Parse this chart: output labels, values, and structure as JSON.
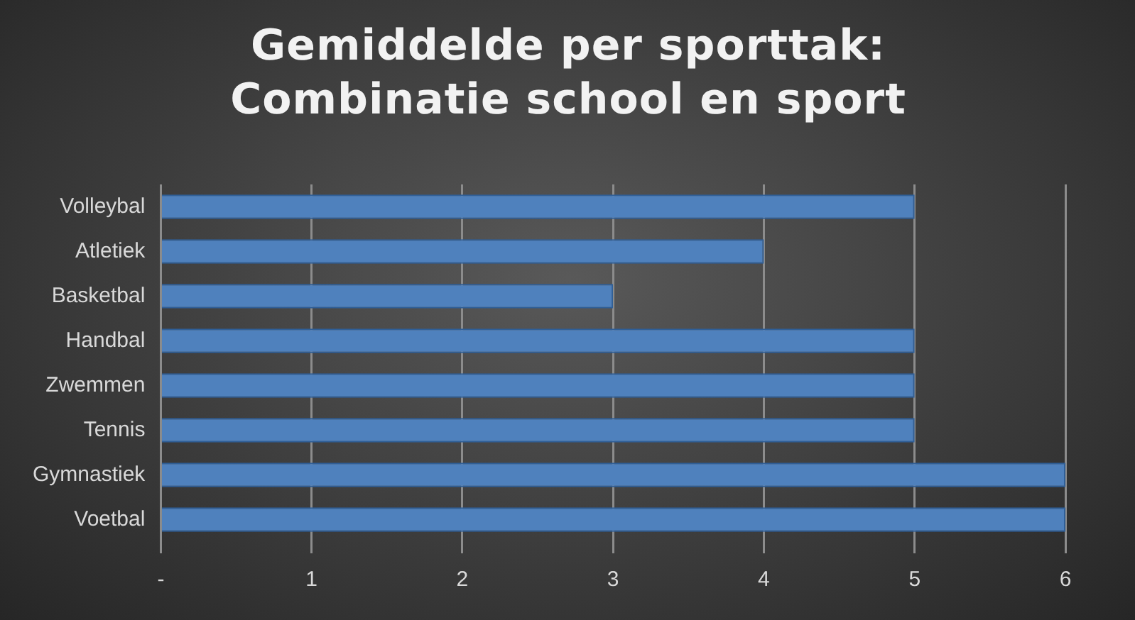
{
  "chart_data": {
    "type": "bar",
    "orientation": "horizontal",
    "title": "Gemiddelde per sporttak: Combinatie school en sport",
    "categories": [
      "Volleybal",
      "Atletiek",
      "Basketbal",
      "Handbal",
      "Zwemmen",
      "Tennis",
      "Gymnastiek",
      "Voetbal"
    ],
    "values": [
      5,
      4,
      3,
      5,
      5,
      5,
      6,
      6
    ],
    "color": "#4f81bd",
    "xlim": [
      0,
      6
    ],
    "xticks": [
      {
        "value": 0,
        "label": "-"
      },
      1,
      2,
      3,
      4,
      5,
      6
    ],
    "grid": "x"
  }
}
